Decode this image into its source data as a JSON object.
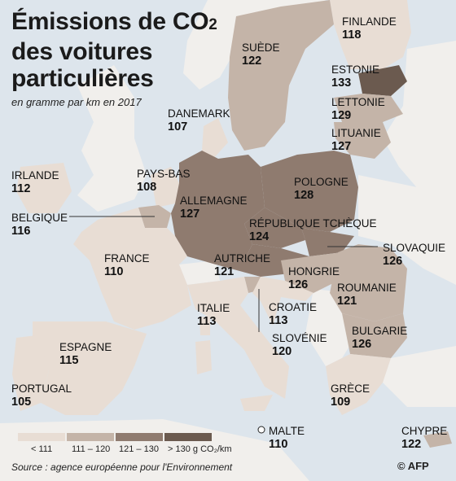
{
  "title_line1": "Émissions de CO",
  "title_sub": "2",
  "title_line2": "des voitures",
  "title_line3": "particulières",
  "subtitle": "en gramme par km en 2017",
  "colors": {
    "sea": "#dde5ec",
    "outside": "#f1efec",
    "c1": "#e8ddd4",
    "c2": "#c4b4a8",
    "c3": "#8f7b6f",
    "c4": "#6b5a4f"
  },
  "countries": [
    {
      "name": "FINLANDE",
      "value": "118"
    },
    {
      "name": "SUÈDE",
      "value": "122"
    },
    {
      "name": "ESTONIE",
      "value": "133"
    },
    {
      "name": "LETTONIE",
      "value": "129"
    },
    {
      "name": "LITUANIE",
      "value": "127"
    },
    {
      "name": "DANEMARK",
      "value": "107"
    },
    {
      "name": "IRLANDE",
      "value": "112"
    },
    {
      "name": "PAYS-BAS",
      "value": "108"
    },
    {
      "name": "POLOGNE",
      "value": "128"
    },
    {
      "name": "ALLEMAGNE",
      "value": "127"
    },
    {
      "name": "BELGIQUE",
      "value": "116"
    },
    {
      "name": "RÉPUBLIQUE TCHÈQUE",
      "value": "124"
    },
    {
      "name": "SLOVAQUIE",
      "value": "126"
    },
    {
      "name": "FRANCE",
      "value": "110"
    },
    {
      "name": "AUTRICHE",
      "value": "121"
    },
    {
      "name": "HONGRIE",
      "value": "126"
    },
    {
      "name": "ROUMANIE",
      "value": "121"
    },
    {
      "name": "CROATIE",
      "value": "113"
    },
    {
      "name": "ITALIE",
      "value": "113"
    },
    {
      "name": "SLOVÉNIE",
      "value": "120"
    },
    {
      "name": "BULGARIE",
      "value": "126"
    },
    {
      "name": "ESPAGNE",
      "value": "115"
    },
    {
      "name": "PORTUGAL",
      "value": "105"
    },
    {
      "name": "GRÈCE",
      "value": "109"
    },
    {
      "name": "MALTE",
      "value": "110"
    },
    {
      "name": "CHYPRE",
      "value": "122"
    }
  ],
  "legend": [
    {
      "label": "< 111"
    },
    {
      "label": "111 – 120"
    },
    {
      "label": "121 – 130"
    },
    {
      "label": "> 130 g CO₂/km"
    }
  ],
  "source": "Source : agence européenne pour l'Environnement",
  "credit": "© AFP"
}
